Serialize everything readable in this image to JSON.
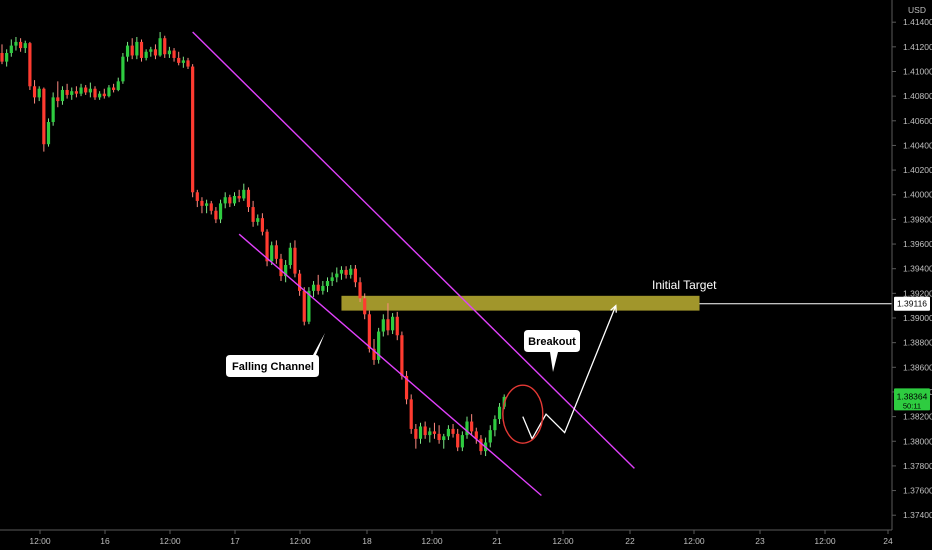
{
  "chart_data": {
    "type": "candlestick",
    "currency": "USD",
    "y_ticks": [
      "1.41400",
      "1.41200",
      "1.41000",
      "1.40800",
      "1.40600",
      "1.40400",
      "1.40200",
      "1.40000",
      "1.39800",
      "1.39600",
      "1.39400",
      "1.39200",
      "1.39000",
      "1.38800",
      "1.38600",
      "1.38400",
      "1.38200",
      "1.38000",
      "1.37800",
      "1.37600",
      "1.37400"
    ],
    "y_tick_values": [
      1.414,
      1.412,
      1.41,
      1.408,
      1.406,
      1.404,
      1.402,
      1.4,
      1.398,
      1.396,
      1.394,
      1.392,
      1.39,
      1.388,
      1.386,
      1.384,
      1.382,
      1.38,
      1.378,
      1.376,
      1.374
    ],
    "ylim": [
      1.3728,
      1.4158
    ],
    "x_ticks": [
      "12:00",
      "16",
      "12:00",
      "17",
      "12:00",
      "18",
      "12:00",
      "21",
      "12:00",
      "22",
      "12:00",
      "23",
      "12:00",
      "24"
    ],
    "price_label": "1.39116",
    "price_label_value": 1.39116,
    "current_price": "1.38364",
    "current_price_value": 1.38364,
    "countdown": "50:11",
    "colors": {
      "up": "#26a69a",
      "down": "#ef5350",
      "up_bright": "#2ecc40",
      "down_bright": "#ff3b30",
      "channel": "#e040fb",
      "zone": "#bdb033",
      "circle": "#e53935"
    },
    "candles": [
      [
        1.4115,
        1.4122,
        1.4106,
        1.4108
      ],
      [
        1.4108,
        1.4118,
        1.4104,
        1.4115
      ],
      [
        1.4115,
        1.4126,
        1.4112,
        1.4121
      ],
      [
        1.4121,
        1.4128,
        1.4117,
        1.4124
      ],
      [
        1.4124,
        1.4127,
        1.4116,
        1.4119
      ],
      [
        1.4119,
        1.4125,
        1.4115,
        1.4123
      ],
      [
        1.4123,
        1.4124,
        1.4085,
        1.4088
      ],
      [
        1.4088,
        1.4093,
        1.4074,
        1.4079
      ],
      [
        1.4079,
        1.4088,
        1.4076,
        1.4086
      ],
      [
        1.4086,
        1.4087,
        1.4035,
        1.4041
      ],
      [
        1.4041,
        1.4062,
        1.4039,
        1.4059
      ],
      [
        1.4059,
        1.4083,
        1.4056,
        1.4079
      ],
      [
        1.4079,
        1.4092,
        1.4071,
        1.4076
      ],
      [
        1.4076,
        1.4088,
        1.4073,
        1.4085
      ],
      [
        1.4085,
        1.409,
        1.4078,
        1.4081
      ],
      [
        1.4081,
        1.4087,
        1.4077,
        1.4084
      ],
      [
        1.4084,
        1.4088,
        1.4079,
        1.4082
      ],
      [
        1.4082,
        1.409,
        1.408,
        1.4087
      ],
      [
        1.4087,
        1.4089,
        1.4081,
        1.4083
      ],
      [
        1.4083,
        1.4091,
        1.4079,
        1.4086
      ],
      [
        1.4086,
        1.4088,
        1.4077,
        1.4079
      ],
      [
        1.4079,
        1.4084,
        1.4077,
        1.4082
      ],
      [
        1.4082,
        1.4086,
        1.4078,
        1.408
      ],
      [
        1.408,
        1.4089,
        1.4079,
        1.4087
      ],
      [
        1.4087,
        1.409,
        1.4083,
        1.4085
      ],
      [
        1.4085,
        1.4095,
        1.4084,
        1.4092
      ],
      [
        1.4092,
        1.4115,
        1.409,
        1.4112
      ],
      [
        1.4112,
        1.4124,
        1.4108,
        1.4121
      ],
      [
        1.4121,
        1.4127,
        1.411,
        1.4113
      ],
      [
        1.4113,
        1.4128,
        1.411,
        1.4124
      ],
      [
        1.4124,
        1.4126,
        1.4108,
        1.4111
      ],
      [
        1.4111,
        1.4118,
        1.4109,
        1.4116
      ],
      [
        1.4116,
        1.412,
        1.4112,
        1.4118
      ],
      [
        1.4118,
        1.4122,
        1.411,
        1.4113
      ],
      [
        1.4113,
        1.4132,
        1.4112,
        1.4127
      ],
      [
        1.4127,
        1.4129,
        1.4111,
        1.4114
      ],
      [
        1.4114,
        1.412,
        1.4111,
        1.4117
      ],
      [
        1.4117,
        1.4119,
        1.4108,
        1.4111
      ],
      [
        1.4111,
        1.4116,
        1.4105,
        1.4107
      ],
      [
        1.4107,
        1.4112,
        1.4103,
        1.4109
      ],
      [
        1.4109,
        1.4111,
        1.4102,
        1.4104
      ],
      [
        1.4104,
        1.4106,
        1.3998,
        1.4002
      ],
      [
        1.4002,
        1.4004,
        1.399,
        1.3995
      ],
      [
        1.3995,
        1.3998,
        1.3985,
        1.3991
      ],
      [
        1.3991,
        1.3996,
        1.3985,
        1.3993
      ],
      [
        1.3993,
        1.3995,
        1.3984,
        1.3987
      ],
      [
        1.3987,
        1.399,
        1.3977,
        1.398
      ],
      [
        1.398,
        1.3996,
        1.3977,
        1.3993
      ],
      [
        1.3993,
        1.4002,
        1.3989,
        1.3998
      ],
      [
        1.3998,
        1.4,
        1.399,
        1.3993
      ],
      [
        1.3993,
        1.4002,
        1.3991,
        1.3999
      ],
      [
        1.3999,
        1.4004,
        1.3994,
        1.3997
      ],
      [
        1.3997,
        1.4009,
        1.3995,
        1.4004
      ],
      [
        1.4004,
        1.4006,
        1.3986,
        1.399
      ],
      [
        1.399,
        1.3995,
        1.3974,
        1.3978
      ],
      [
        1.3978,
        1.3984,
        1.3975,
        1.3981
      ],
      [
        1.3981,
        1.3985,
        1.3967,
        1.397
      ],
      [
        1.397,
        1.3972,
        1.3942,
        1.3946
      ],
      [
        1.3946,
        1.3962,
        1.3943,
        1.3959
      ],
      [
        1.3959,
        1.3963,
        1.3944,
        1.3948
      ],
      [
        1.3948,
        1.3952,
        1.393,
        1.3934
      ],
      [
        1.3934,
        1.3947,
        1.3929,
        1.3943
      ],
      [
        1.3943,
        1.3961,
        1.394,
        1.3957
      ],
      [
        1.3957,
        1.3963,
        1.3933,
        1.3936
      ],
      [
        1.3936,
        1.3939,
        1.3918,
        1.3922
      ],
      [
        1.3922,
        1.3925,
        1.3894,
        1.3897
      ],
      [
        1.3897,
        1.3925,
        1.3895,
        1.3922
      ],
      [
        1.3922,
        1.393,
        1.3917,
        1.3927
      ],
      [
        1.3927,
        1.3935,
        1.3919,
        1.3922
      ],
      [
        1.3922,
        1.393,
        1.3919,
        1.3926
      ],
      [
        1.3926,
        1.3933,
        1.3921,
        1.393
      ],
      [
        1.393,
        1.3937,
        1.3926,
        1.3933
      ],
      [
        1.3933,
        1.3941,
        1.3929,
        1.3936
      ],
      [
        1.3936,
        1.3942,
        1.3931,
        1.3939
      ],
      [
        1.3939,
        1.3942,
        1.3932,
        1.3935
      ],
      [
        1.3935,
        1.3943,
        1.3932,
        1.394
      ],
      [
        1.394,
        1.3943,
        1.3925,
        1.3929
      ],
      [
        1.3929,
        1.3933,
        1.3913,
        1.3916
      ],
      [
        1.3916,
        1.392,
        1.3899,
        1.3903
      ],
      [
        1.3903,
        1.3906,
        1.3872,
        1.3875
      ],
      [
        1.3875,
        1.3883,
        1.3862,
        1.3866
      ],
      [
        1.3866,
        1.3892,
        1.3863,
        1.3889
      ],
      [
        1.3889,
        1.3903,
        1.3885,
        1.3899
      ],
      [
        1.3899,
        1.3912,
        1.3886,
        1.389
      ],
      [
        1.389,
        1.3904,
        1.3887,
        1.3901
      ],
      [
        1.3901,
        1.3905,
        1.3882,
        1.3886
      ],
      [
        1.3886,
        1.3889,
        1.385,
        1.3853
      ],
      [
        1.3853,
        1.3857,
        1.383,
        1.3834
      ],
      [
        1.3834,
        1.3838,
        1.3806,
        1.381
      ],
      [
        1.381,
        1.3814,
        1.3794,
        1.3802
      ],
      [
        1.3802,
        1.3815,
        1.3798,
        1.3812
      ],
      [
        1.3812,
        1.3816,
        1.3802,
        1.3805
      ],
      [
        1.3805,
        1.3811,
        1.3799,
        1.3808
      ],
      [
        1.3808,
        1.3815,
        1.3802,
        1.3806
      ],
      [
        1.3806,
        1.3813,
        1.3798,
        1.3801
      ],
      [
        1.3801,
        1.3806,
        1.3794,
        1.3804
      ],
      [
        1.3804,
        1.3813,
        1.3801,
        1.381
      ],
      [
        1.381,
        1.3814,
        1.3803,
        1.3806
      ],
      [
        1.3806,
        1.381,
        1.3792,
        1.3795
      ],
      [
        1.3795,
        1.3808,
        1.3792,
        1.3805
      ],
      [
        1.3805,
        1.382,
        1.3802,
        1.3816
      ],
      [
        1.3816,
        1.3822,
        1.3805,
        1.3808
      ],
      [
        1.3808,
        1.3811,
        1.3798,
        1.3802
      ],
      [
        1.3802,
        1.3805,
        1.3789,
        1.3792
      ],
      [
        1.3792,
        1.3803,
        1.3788,
        1.3799
      ],
      [
        1.3799,
        1.3813,
        1.3795,
        1.3809
      ],
      [
        1.3809,
        1.3821,
        1.3804,
        1.3818
      ],
      [
        1.3818,
        1.3831,
        1.3814,
        1.3828
      ],
      [
        1.3828,
        1.3838,
        1.3826,
        1.3836
      ]
    ],
    "annotations": {
      "falling_channel": "Falling Channel",
      "breakout": "Breakout",
      "initial_target": "Initial Target"
    },
    "channel": {
      "upper": [
        [
          41,
          1.4132
        ],
        [
          136,
          1.3778
        ]
      ],
      "lower": [
        [
          51,
          1.3968
        ],
        [
          116,
          1.3756
        ]
      ]
    },
    "target_zone": [
      1.3906,
      1.3918
    ],
    "target_zone_x": [
      73,
      150
    ],
    "target_line_x": [
      150,
      172
    ],
    "projection": [
      [
        112,
        1.382
      ],
      [
        114,
        1.3802
      ],
      [
        117,
        1.3822
      ],
      [
        121,
        1.3807
      ],
      [
        132,
        1.391
      ]
    ],
    "breakout_circle": {
      "center": [
        112,
        1.3822
      ]
    }
  }
}
